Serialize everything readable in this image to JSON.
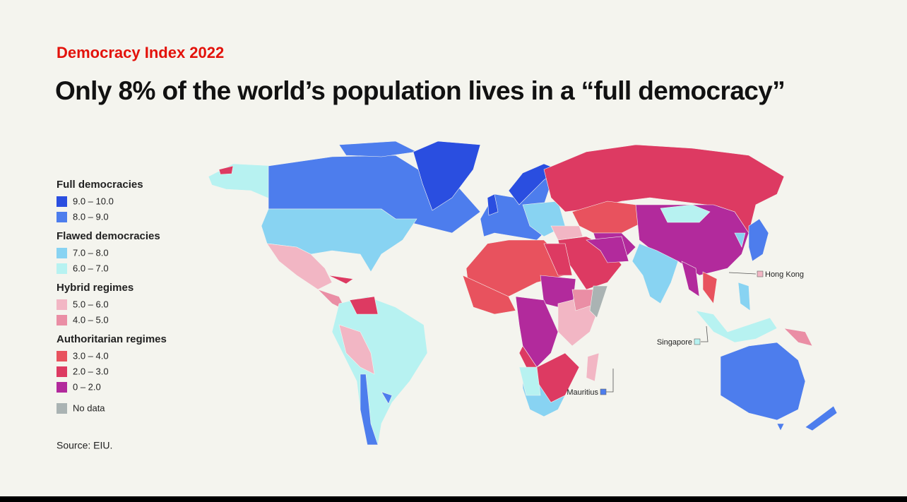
{
  "subtitle": "Democracy Index 2022",
  "title": "Only 8% of the world’s population lives in a “full democracy”",
  "legend": [
    {
      "heading": "Full democracies",
      "items": [
        {
          "label": "9.0 – 10.0",
          "color": "#2a4ee0"
        },
        {
          "label": "8.0 – 9.0",
          "color": "#4d7ded"
        }
      ]
    },
    {
      "heading": "Flawed democracies",
      "items": [
        {
          "label": "7.0 – 8.0",
          "color": "#88d3f2"
        },
        {
          "label": "6.0 – 7.0",
          "color": "#b7f2f1"
        }
      ]
    },
    {
      "heading": "Hybrid regimes",
      "items": [
        {
          "label": "5.0 – 6.0",
          "color": "#f2b6c4"
        },
        {
          "label": "4.0 – 5.0",
          "color": "#ea8ea5"
        }
      ]
    },
    {
      "heading": "Authoritarian regimes",
      "items": [
        {
          "label": "3.0 – 4.0",
          "color": "#e8525e"
        },
        {
          "label": "2.0 – 3.0",
          "color": "#dd3a62"
        },
        {
          "label": "0 – 2.0",
          "color": "#b22a9c"
        }
      ]
    },
    {
      "items": [
        {
          "label": "No data",
          "color": "#aab3b3"
        }
      ]
    }
  ],
  "callouts": [
    {
      "label": "Hong Kong",
      "color": "#f2b6c4"
    },
    {
      "label": "Singapore",
      "color": "#b7f2f1"
    },
    {
      "label": "Mauritius",
      "color": "#4d7ded"
    }
  ],
  "source": "Source: EIU."
}
